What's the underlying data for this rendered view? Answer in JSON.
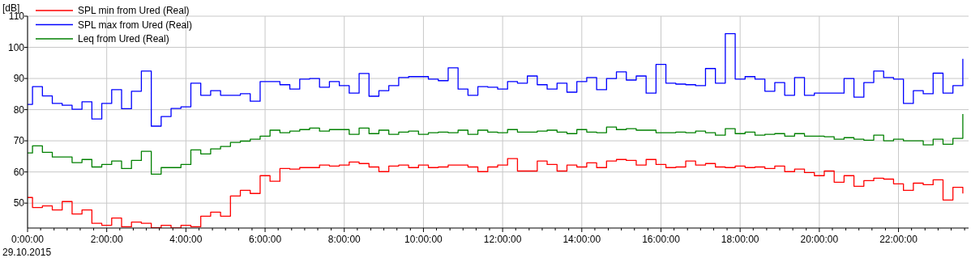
{
  "chart_data": {
    "type": "step",
    "ylabel": "[dB]",
    "annotations": [
      "29.10.2015"
    ],
    "x": [
      0,
      0.125,
      0.375,
      0.625,
      0.875,
      1.125,
      1.375,
      1.625,
      1.875,
      2.125,
      2.375,
      2.625,
      2.875,
      3.125,
      3.375,
      3.625,
      3.875,
      4.125,
      4.375,
      4.625,
      4.875,
      5.125,
      5.375,
      5.625,
      5.875,
      6.125,
      6.375,
      6.625,
      6.875,
      7.125,
      7.375,
      7.625,
      7.875,
      8.125,
      8.375,
      8.625,
      8.875,
      9.125,
      9.375,
      9.625,
      9.875,
      10.125,
      10.375,
      10.625,
      10.875,
      11.125,
      11.375,
      11.625,
      11.875,
      12.125,
      12.375,
      12.625,
      12.875,
      13.125,
      13.375,
      13.625,
      13.875,
      14.125,
      14.375,
      14.625,
      14.875,
      15.125,
      15.375,
      15.625,
      15.875,
      16.125,
      16.375,
      16.625,
      16.875,
      17.125,
      17.375,
      17.625,
      17.875,
      18.125,
      18.375,
      18.625,
      18.875,
      19.125,
      19.375,
      19.625,
      19.875,
      20.125,
      20.375,
      20.625,
      20.875,
      21.125,
      21.375,
      21.625,
      21.875,
      22.125,
      22.375,
      22.625,
      22.875,
      23.125,
      23.375,
      23.625
    ],
    "series": [
      {
        "name": "SPL min from Ured (Real)",
        "color": "#ff0000",
        "values": [
          51.8,
          48.6,
          49.1,
          47.8,
          50.5,
          46.5,
          47.8,
          43.5,
          42.9,
          45.2,
          42.4,
          43.9,
          43.5,
          42.1,
          42.9,
          42.0,
          42.9,
          42.4,
          45.8,
          47.1,
          45.8,
          52.3,
          54.1,
          53.1,
          58.8,
          57.0,
          61.1,
          60.9,
          61.4,
          61.4,
          62.2,
          61.9,
          62.2,
          63.2,
          62.7,
          61.6,
          60.1,
          61.9,
          62.2,
          61.4,
          62.2,
          61.4,
          61.6,
          62.2,
          62.2,
          61.6,
          60.1,
          61.6,
          62.2,
          64.3,
          60.3,
          60.3,
          63.5,
          62.4,
          60.3,
          62.2,
          61.6,
          62.9,
          61.4,
          63.5,
          64.0,
          63.7,
          62.2,
          64.0,
          62.4,
          61.4,
          61.6,
          63.5,
          62.2,
          62.7,
          61.6,
          61.4,
          61.9,
          61.4,
          61.6,
          61.1,
          61.9,
          60.1,
          60.9,
          59.8,
          58.8,
          60.3,
          56.7,
          58.8,
          55.4,
          57.2,
          58.0,
          57.7,
          56.2,
          54.1,
          56.4,
          55.9,
          57.5,
          51.0,
          55.1,
          53.1
        ]
      },
      {
        "name": "SPL max from Ured (Real)",
        "color": "#0000ff",
        "values": [
          81.7,
          87.4,
          84.4,
          82.0,
          81.4,
          80.1,
          82.5,
          77.0,
          82.0,
          86.4,
          80.3,
          85.9,
          92.4,
          74.7,
          77.8,
          80.4,
          80.9,
          88.5,
          84.6,
          86.1,
          84.6,
          84.6,
          85.1,
          82.7,
          89.0,
          89.0,
          88.0,
          86.6,
          89.8,
          90.0,
          87.2,
          89.0,
          87.7,
          85.3,
          91.6,
          84.3,
          86.1,
          87.7,
          90.3,
          90.6,
          90.6,
          89.8,
          89.3,
          93.4,
          86.6,
          84.6,
          87.4,
          87.2,
          86.6,
          89.0,
          88.5,
          90.8,
          88.0,
          86.6,
          88.5,
          85.6,
          89.0,
          90.3,
          86.4,
          90.0,
          92.1,
          89.5,
          90.8,
          85.3,
          94.5,
          88.5,
          88.2,
          88.0,
          87.7,
          93.2,
          88.5,
          104.4,
          89.8,
          90.6,
          89.8,
          85.9,
          88.7,
          84.6,
          90.3,
          84.6,
          85.3,
          85.3,
          85.3,
          90.0,
          84.0,
          88.7,
          92.4,
          90.3,
          89.8,
          82.0,
          86.1,
          85.1,
          91.7,
          85.3,
          87.7,
          96.3
        ]
      },
      {
        "name": "Leq from Ured (Real)",
        "color": "#008000",
        "values": [
          66.1,
          68.4,
          66.3,
          64.8,
          64.8,
          63.0,
          64.0,
          61.6,
          62.4,
          63.5,
          61.1,
          63.7,
          66.6,
          59.3,
          61.4,
          61.4,
          62.4,
          67.1,
          65.8,
          67.4,
          68.2,
          69.5,
          69.9,
          70.5,
          71.5,
          73.4,
          72.6,
          73.1,
          73.6,
          74.1,
          73.1,
          73.6,
          73.6,
          72.1,
          74.1,
          72.3,
          73.4,
          72.1,
          72.8,
          73.1,
          72.1,
          72.6,
          72.8,
          72.6,
          73.4,
          72.1,
          73.4,
          72.8,
          72.6,
          73.6,
          72.8,
          72.8,
          73.1,
          73.4,
          72.8,
          72.3,
          73.6,
          72.8,
          72.6,
          74.4,
          73.6,
          73.9,
          73.4,
          73.4,
          72.6,
          72.6,
          72.8,
          72.6,
          73.1,
          72.6,
          71.8,
          73.9,
          72.3,
          72.8,
          71.8,
          72.1,
          72.3,
          71.5,
          72.3,
          71.5,
          71.5,
          71.3,
          70.5,
          71.0,
          70.5,
          70.2,
          71.8,
          70.0,
          70.5,
          70.0,
          70.0,
          68.7,
          70.5,
          68.9,
          70.8,
          78.6
        ]
      }
    ],
    "xlim": [
      0,
      23.77
    ],
    "xticks": [
      {
        "value": 0,
        "label": "0:00:00"
      },
      {
        "value": 0.33,
        "label": null
      },
      {
        "value": 0.67,
        "label": null
      },
      {
        "value": 1,
        "label": null
      },
      {
        "value": 1.33,
        "label": null
      },
      {
        "value": 1.67,
        "label": null
      },
      {
        "value": 2,
        "label": "2:00:00"
      },
      {
        "value": 2.33,
        "label": null
      },
      {
        "value": 2.67,
        "label": null
      },
      {
        "value": 3,
        "label": null
      },
      {
        "value": 3.33,
        "label": null
      },
      {
        "value": 3.67,
        "label": null
      },
      {
        "value": 4,
        "label": "4:00:00"
      },
      {
        "value": 4.33,
        "label": null
      },
      {
        "value": 4.67,
        "label": null
      },
      {
        "value": 5,
        "label": null
      },
      {
        "value": 5.33,
        "label": null
      },
      {
        "value": 5.67,
        "label": null
      },
      {
        "value": 6,
        "label": "6:00:00"
      },
      {
        "value": 6.33,
        "label": null
      },
      {
        "value": 6.67,
        "label": null
      },
      {
        "value": 7,
        "label": null
      },
      {
        "value": 7.33,
        "label": null
      },
      {
        "value": 7.67,
        "label": null
      },
      {
        "value": 8,
        "label": "8:00:00"
      },
      {
        "value": 8.33,
        "label": null
      },
      {
        "value": 8.67,
        "label": null
      },
      {
        "value": 9,
        "label": null
      },
      {
        "value": 9.33,
        "label": null
      },
      {
        "value": 9.67,
        "label": null
      },
      {
        "value": 10,
        "label": "10:00:00"
      },
      {
        "value": 10.33,
        "label": null
      },
      {
        "value": 10.67,
        "label": null
      },
      {
        "value": 11,
        "label": null
      },
      {
        "value": 11.33,
        "label": null
      },
      {
        "value": 11.67,
        "label": null
      },
      {
        "value": 12,
        "label": "12:00:00"
      },
      {
        "value": 12.33,
        "label": null
      },
      {
        "value": 12.67,
        "label": null
      },
      {
        "value": 13,
        "label": null
      },
      {
        "value": 13.33,
        "label": null
      },
      {
        "value": 13.67,
        "label": null
      },
      {
        "value": 14,
        "label": "14:00:00"
      },
      {
        "value": 14.33,
        "label": null
      },
      {
        "value": 14.67,
        "label": null
      },
      {
        "value": 15,
        "label": null
      },
      {
        "value": 15.33,
        "label": null
      },
      {
        "value": 15.67,
        "label": null
      },
      {
        "value": 16,
        "label": "16:00:00"
      },
      {
        "value": 16.33,
        "label": null
      },
      {
        "value": 16.67,
        "label": null
      },
      {
        "value": 17,
        "label": null
      },
      {
        "value": 17.33,
        "label": null
      },
      {
        "value": 17.67,
        "label": null
      },
      {
        "value": 18,
        "label": "18:00:00"
      },
      {
        "value": 18.33,
        "label": null
      },
      {
        "value": 18.67,
        "label": null
      },
      {
        "value": 19,
        "label": null
      },
      {
        "value": 19.33,
        "label": null
      },
      {
        "value": 19.67,
        "label": null
      },
      {
        "value": 20,
        "label": "20:00:00"
      },
      {
        "value": 20.33,
        "label": null
      },
      {
        "value": 20.67,
        "label": null
      },
      {
        "value": 21,
        "label": null
      },
      {
        "value": 21.33,
        "label": null
      },
      {
        "value": 21.67,
        "label": null
      },
      {
        "value": 22,
        "label": "22:00:00"
      },
      {
        "value": 22.33,
        "label": null
      },
      {
        "value": 22.67,
        "label": null
      },
      {
        "value": 23,
        "label": null
      },
      {
        "value": 23.33,
        "label": null
      },
      {
        "value": 23.67,
        "label": null
      }
    ],
    "ylim": [
      42,
      110
    ],
    "yticks": [
      50,
      60,
      70,
      80,
      90,
      100,
      110
    ],
    "grid": true,
    "legend": "top left",
    "line_style": "solid"
  }
}
